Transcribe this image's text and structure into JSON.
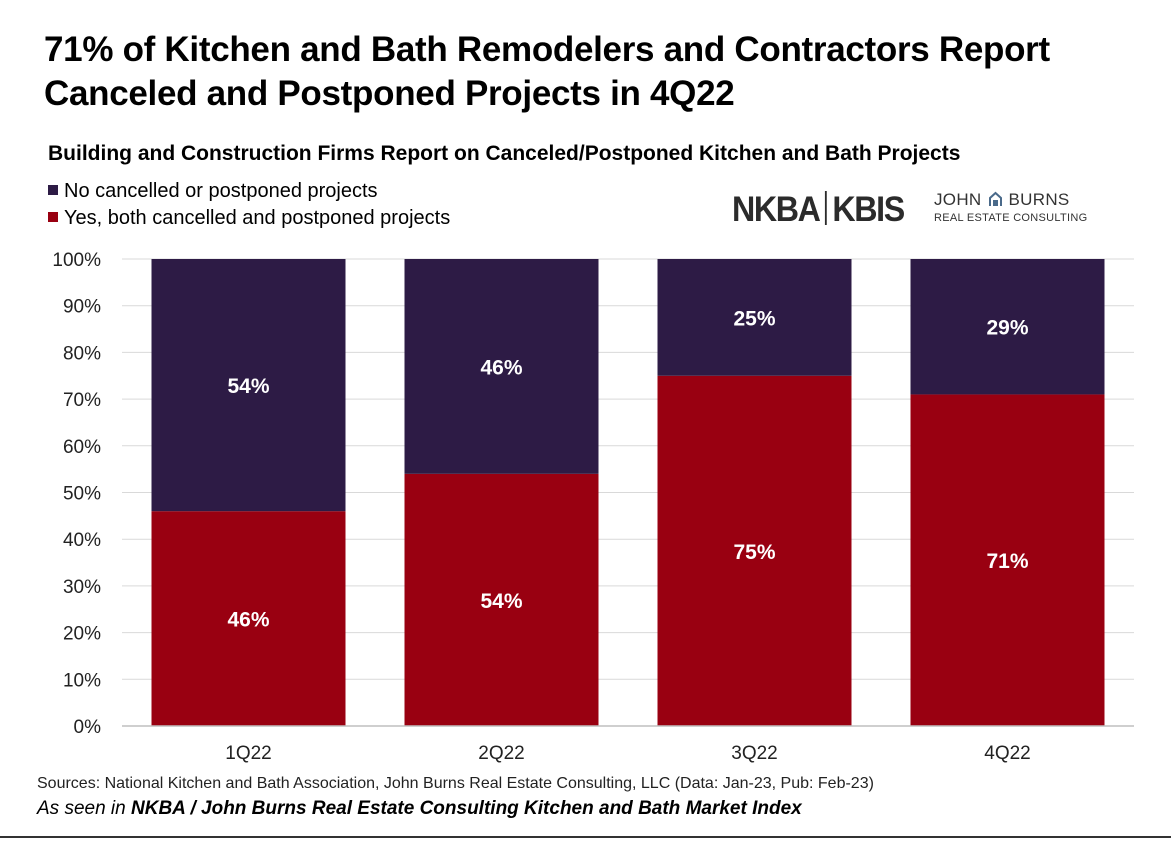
{
  "title": "71% of Kitchen and Bath Remodelers and Contractors Report Canceled and Postponed Projects in 4Q22",
  "logos": {
    "nkba": "NKBA",
    "kbis": "KBIS",
    "jb_line1_a": "JOHN",
    "jb_line1_b": "BURNS",
    "jb_line2": "REAL ESTATE CONSULTING"
  },
  "footer": {
    "sources": "Sources: National Kitchen and Bath Association, John Burns Real Estate Consulting, LLC (Data: Jan-23, Pub: Feb-23)",
    "seen_prefix": "As seen in ",
    "seen_bold": "NKBA / John Burns Real Estate Consulting Kitchen and Bath Market Index"
  },
  "chart_data": {
    "type": "bar",
    "stacked": true,
    "title": "Building and Construction Firms Report on Canceled/Postponed Kitchen and Bath Projects",
    "categories": [
      "1Q22",
      "2Q22",
      "3Q22",
      "4Q22"
    ],
    "series": [
      {
        "name": "Yes, both cancelled and postponed projects",
        "values": [
          46,
          54,
          75,
          71
        ],
        "labels": [
          "46%",
          "54%",
          "75%",
          "71%"
        ],
        "color": "#990011"
      },
      {
        "name": "No cancelled or postponed projects",
        "values": [
          54,
          46,
          25,
          29
        ],
        "labels": [
          "54%",
          "46%",
          "25%",
          "29%"
        ],
        "color": "#2d1b45"
      }
    ],
    "legend_order": [
      1,
      0
    ],
    "ylim": [
      0,
      100
    ],
    "yticks": [
      "0%",
      "10%",
      "20%",
      "30%",
      "40%",
      "50%",
      "60%",
      "70%",
      "80%",
      "90%",
      "100%"
    ],
    "grid": true,
    "legend_position": "top-left"
  }
}
